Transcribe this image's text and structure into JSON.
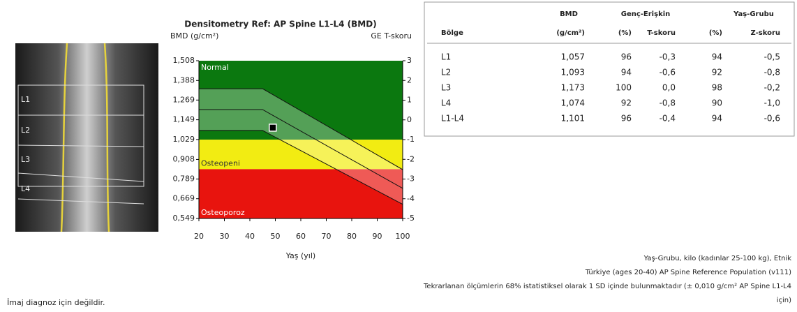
{
  "chart_data": {
    "type": "scatter",
    "title": "Densitometry Ref: AP Spine L1-L4 (BMD)",
    "y_label": "BMD (g/cm²)",
    "y2_label": "GE T-skoru",
    "x_label": "Yaş (yıl)",
    "xlim": [
      20,
      100
    ],
    "xticks": [
      20,
      30,
      40,
      50,
      60,
      70,
      80,
      90,
      100
    ],
    "ylim": [
      0.549,
      1.508
    ],
    "yticks": [
      {
        "value": 1.508,
        "label": "1,508"
      },
      {
        "value": 1.388,
        "label": "1,388"
      },
      {
        "value": 1.269,
        "label": "1,269"
      },
      {
        "value": 1.149,
        "label": "1,149"
      },
      {
        "value": 1.029,
        "label": "1,029"
      },
      {
        "value": 0.908,
        "label": "0,908"
      },
      {
        "value": 0.789,
        "label": "0,789"
      },
      {
        "value": 0.669,
        "label": "0,669"
      },
      {
        "value": 0.549,
        "label": "0,549"
      }
    ],
    "y2lim": [
      -5,
      3
    ],
    "y2ticks": [
      3,
      2,
      1,
      0,
      -1,
      -2,
      -3,
      -4,
      -5
    ],
    "zones": [
      {
        "label": "Normal",
        "color": "#0b780f",
        "y2": [
          -1,
          3
        ]
      },
      {
        "label": "Osteopeni",
        "color": "#f2ec12",
        "y2": [
          -2.5,
          -1
        ]
      },
      {
        "label": "Osteoporoz",
        "color": "#e8140e",
        "y2": [
          -5,
          -2.5
        ]
      }
    ],
    "reference": {
      "x": [
        20,
        45,
        100
      ],
      "upper": [
        1.338,
        1.338,
        0.846
      ],
      "mean": [
        1.211,
        1.211,
        0.732
      ],
      "lower": [
        1.084,
        1.084,
        0.635
      ]
    },
    "series": [
      {
        "color": "#000000",
        "x": [
          49
        ],
        "values": [
          1.101
        ]
      }
    ]
  },
  "image": {
    "labels": [
      "L1",
      "L2",
      "L3",
      "L4"
    ]
  },
  "table": {
    "header_top": [
      "BMD",
      "Genç-Erişkin",
      "Yaş-Grubu"
    ],
    "header": [
      "Bölge",
      "(g/cm²)",
      "(%)",
      "T-skoru",
      "(%)",
      "Z-skoru"
    ],
    "rows": [
      [
        "L1",
        "1,057",
        "96",
        "-0,3",
        "94",
        "-0,5"
      ],
      [
        "L2",
        "1,093",
        "94",
        "-0,6",
        "92",
        "-0,8"
      ],
      [
        "L3",
        "1,173",
        "100",
        "0,0",
        "98",
        "-0,2"
      ],
      [
        "L4",
        "1,074",
        "92",
        "-0,8",
        "90",
        "-1,0"
      ],
      [
        "L1-L4",
        "1,101",
        "96",
        "-0,4",
        "94",
        "-0,6"
      ]
    ]
  },
  "footnotes": [
    "Yaş-Grubu, kilo (kadınlar 25-100 kg), Etnik",
    "Türkiye (ages 20-40) AP Spine Reference Population (v111)",
    "Tekrarlanan ölçümlerin 68% istatistiksel olarak 1 SD içinde bulunmaktadır (± 0,010 g/cm² AP Spine L1-L4",
    "için)"
  ],
  "disclaimer": "İmaj diagnoz için değildir."
}
